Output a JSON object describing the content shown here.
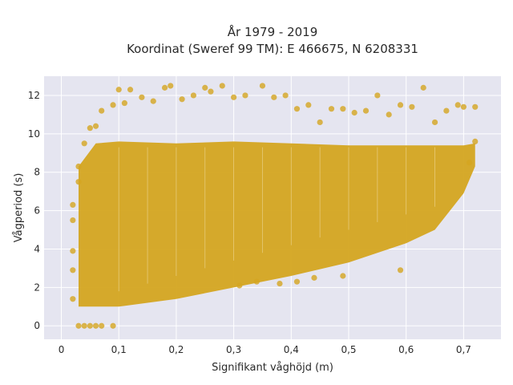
{
  "chart_data": {
    "type": "scatter",
    "title_line1": "År 1979 - 2019",
    "title_line2": "Koordinat (Sweref 99 TM): E 466675, N 6208331",
    "xlabel": "Signifikant våghöjd (m)",
    "ylabel": "Vågperiod (s)",
    "xlim": [
      -0.03,
      0.765
    ],
    "ylim": [
      -0.7,
      13.0
    ],
    "x_ticks": [
      0,
      0.1,
      0.2,
      0.3,
      0.4,
      0.5,
      0.6,
      0.7
    ],
    "x_tick_labels": [
      "0",
      "0,1",
      "0,2",
      "0,3",
      "0,4",
      "0,5",
      "0,6",
      "0,7"
    ],
    "y_ticks": [
      0,
      2,
      4,
      6,
      8,
      10,
      12
    ],
    "y_tick_labels": [
      "0",
      "2",
      "4",
      "6",
      "8",
      "10",
      "12"
    ],
    "grid": true,
    "background": "#e5e5f0",
    "marker_color": "#d4a520",
    "series": [
      {
        "points": [
          [
            0.03,
            0.0
          ],
          [
            0.04,
            0.0
          ],
          [
            0.05,
            0.0
          ],
          [
            0.06,
            0.0
          ],
          [
            0.07,
            0.0
          ],
          [
            0.09,
            0.0
          ],
          [
            0.02,
            1.4
          ],
          [
            0.02,
            2.9
          ],
          [
            0.02,
            3.9
          ],
          [
            0.02,
            5.5
          ],
          [
            0.02,
            6.3
          ],
          [
            0.03,
            7.5
          ],
          [
            0.03,
            8.3
          ],
          [
            0.04,
            9.5
          ],
          [
            0.05,
            10.3
          ],
          [
            0.06,
            10.4
          ],
          [
            0.07,
            11.2
          ],
          [
            0.09,
            11.5
          ],
          [
            0.1,
            12.3
          ],
          [
            0.11,
            11.6
          ],
          [
            0.12,
            12.3
          ],
          [
            0.14,
            11.9
          ],
          [
            0.16,
            11.7
          ],
          [
            0.18,
            12.4
          ],
          [
            0.19,
            12.5
          ],
          [
            0.21,
            11.8
          ],
          [
            0.23,
            12.0
          ],
          [
            0.25,
            12.4
          ],
          [
            0.26,
            12.2
          ],
          [
            0.28,
            12.5
          ],
          [
            0.3,
            11.9
          ],
          [
            0.32,
            12.0
          ],
          [
            0.35,
            12.5
          ],
          [
            0.37,
            11.9
          ],
          [
            0.39,
            12.0
          ],
          [
            0.41,
            11.3
          ],
          [
            0.43,
            11.5
          ],
          [
            0.45,
            10.6
          ],
          [
            0.47,
            11.3
          ],
          [
            0.49,
            11.3
          ],
          [
            0.51,
            11.1
          ],
          [
            0.53,
            11.2
          ],
          [
            0.55,
            12.0
          ],
          [
            0.57,
            11.0
          ],
          [
            0.59,
            11.5
          ],
          [
            0.61,
            11.4
          ],
          [
            0.63,
            12.4
          ],
          [
            0.65,
            10.6
          ],
          [
            0.67,
            11.2
          ],
          [
            0.69,
            11.5
          ],
          [
            0.7,
            11.4
          ],
          [
            0.72,
            11.4
          ],
          [
            0.71,
            8.5
          ],
          [
            0.72,
            9.6
          ],
          [
            0.38,
            2.2
          ],
          [
            0.41,
            2.3
          ],
          [
            0.44,
            2.5
          ],
          [
            0.49,
            2.6
          ],
          [
            0.59,
            2.9
          ],
          [
            0.31,
            2.1
          ],
          [
            0.34,
            2.3
          ]
        ]
      }
    ],
    "dense_envelope": {
      "x_from": 0.03,
      "x_to": 0.72,
      "upper_at_x": [
        [
          0.03,
          8.3
        ],
        [
          0.06,
          9.5
        ],
        [
          0.1,
          9.6
        ],
        [
          0.2,
          9.5
        ],
        [
          0.3,
          9.6
        ],
        [
          0.4,
          9.5
        ],
        [
          0.5,
          9.4
        ],
        [
          0.6,
          9.4
        ],
        [
          0.7,
          9.4
        ],
        [
          0.72,
          9.5
        ]
      ],
      "lower_at_x": [
        [
          0.03,
          1.0
        ],
        [
          0.1,
          1.0
        ],
        [
          0.2,
          1.4
        ],
        [
          0.3,
          2.0
        ],
        [
          0.4,
          2.6
        ],
        [
          0.5,
          3.3
        ],
        [
          0.6,
          4.3
        ],
        [
          0.65,
          5.0
        ],
        [
          0.7,
          6.9
        ],
        [
          0.72,
          8.3
        ]
      ]
    }
  }
}
